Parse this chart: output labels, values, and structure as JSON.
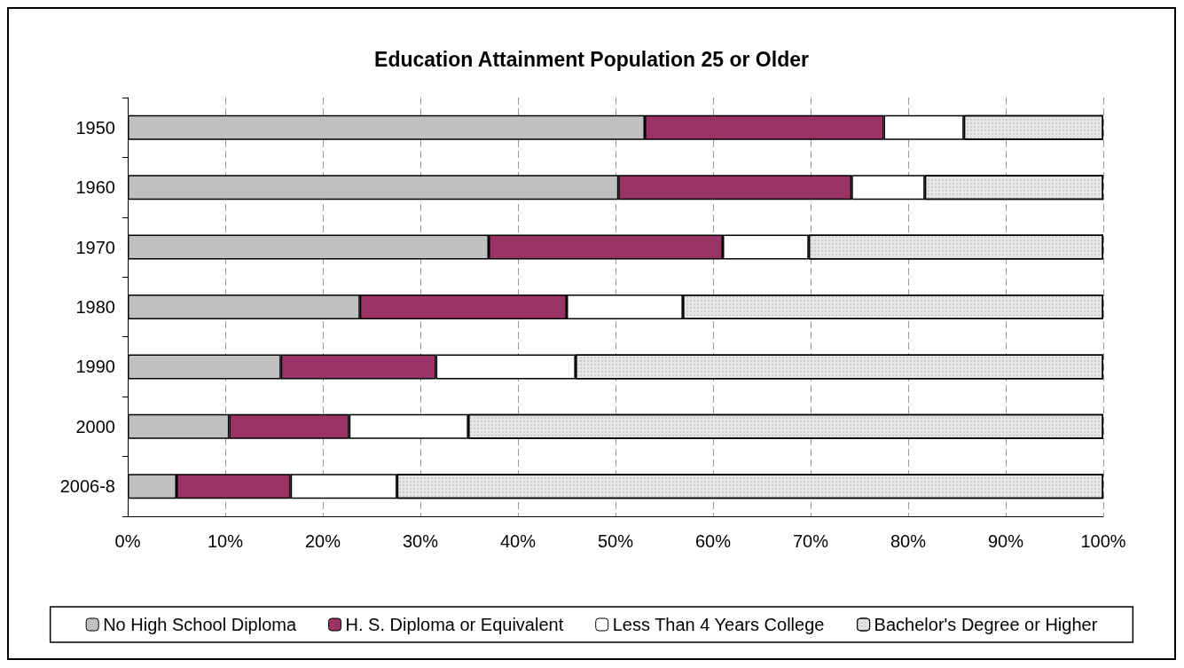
{
  "chart_data": {
    "type": "bar",
    "title": "Education Attainment Population 25 or Older",
    "orientation": "horizontal",
    "stacked": true,
    "categories": [
      "1950",
      "1960",
      "1970",
      "1980",
      "1990",
      "2000",
      "2006-8"
    ],
    "series": [
      {
        "name": "No High School Diploma",
        "color": "#c0c0c0",
        "values": [
          53.0,
          50.3,
          37.0,
          23.8,
          15.7,
          10.4,
          5.0
        ]
      },
      {
        "name": "H. S. Diploma or Equivalent",
        "color": "#993366",
        "values": [
          24.5,
          23.9,
          24.0,
          21.2,
          15.9,
          12.3,
          11.7
        ]
      },
      {
        "name": "Less Than 4 Years College",
        "color": "#ffffff",
        "values": [
          8.2,
          7.5,
          8.8,
          11.9,
          14.3,
          12.2,
          10.9
        ]
      },
      {
        "name": "Bachelor's Degree or Higher",
        "color": "#e6e6e6",
        "values": [
          14.3,
          18.3,
          30.2,
          43.1,
          54.1,
          65.1,
          72.4
        ]
      }
    ],
    "xlim": [
      0,
      100
    ],
    "xticks": [
      {
        "value": 0,
        "label": "0%"
      },
      {
        "value": 10,
        "label": "10%"
      },
      {
        "value": 20,
        "label": "20%"
      },
      {
        "value": 30,
        "label": "30%"
      },
      {
        "value": 40,
        "label": "40%"
      },
      {
        "value": 50,
        "label": "50%"
      },
      {
        "value": 60,
        "label": "60%"
      },
      {
        "value": 70,
        "label": "70%"
      },
      {
        "value": 80,
        "label": "80%"
      },
      {
        "value": 90,
        "label": "90%"
      },
      {
        "value": 100,
        "label": "100%"
      }
    ],
    "grid": "x",
    "legend": "bottom"
  }
}
